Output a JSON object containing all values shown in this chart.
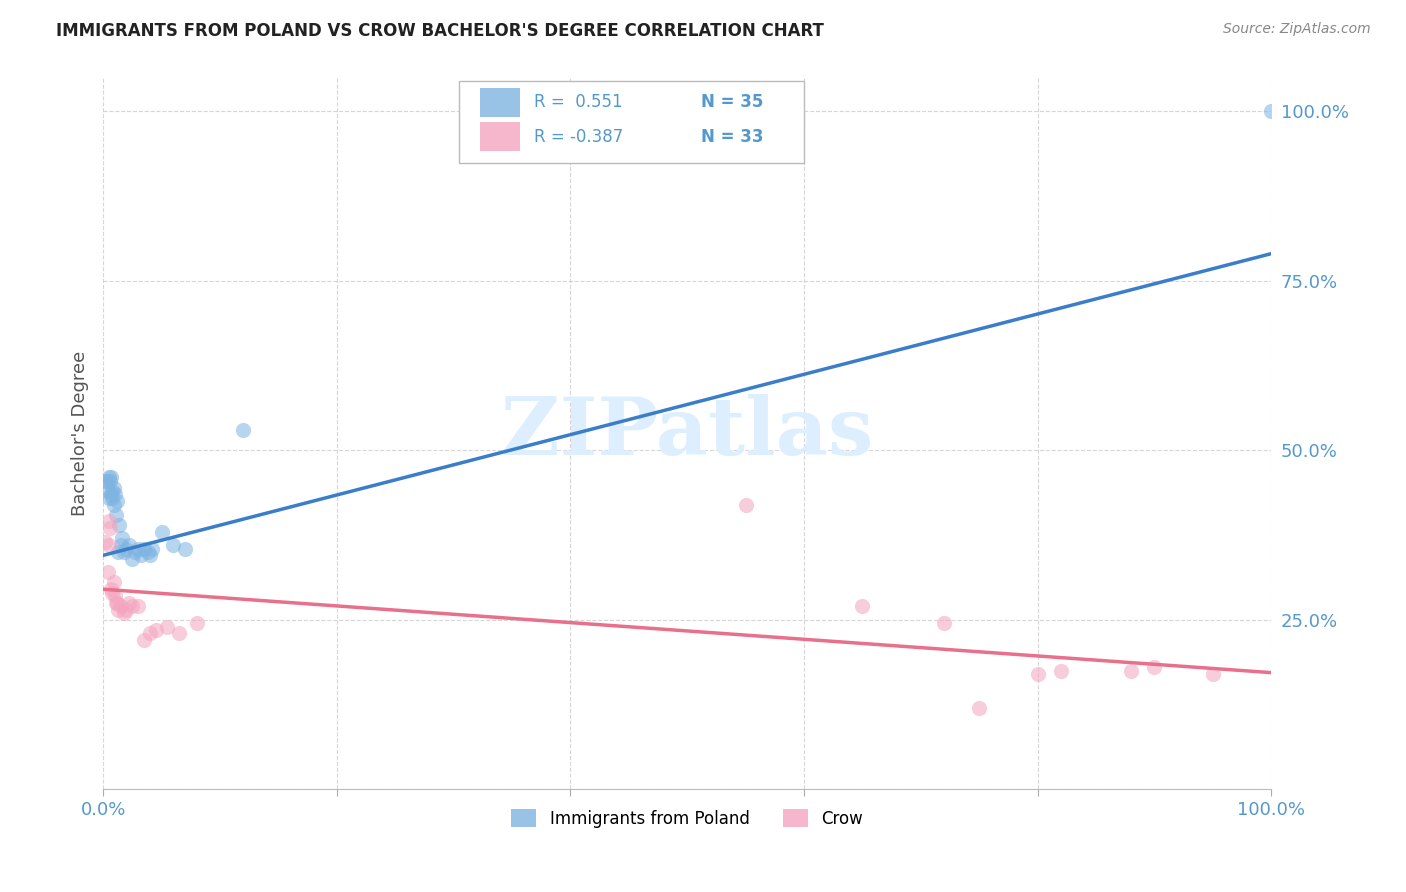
{
  "title": "IMMIGRANTS FROM POLAND VS CROW BACHELOR'S DEGREE CORRELATION CHART",
  "source": "Source: ZipAtlas.com",
  "ylabel": "Bachelor's Degree",
  "watermark": "ZIPatlas",
  "legend_blue_r": "R =  0.551",
  "legend_blue_n": "N = 35",
  "legend_pink_r": "R = -0.387",
  "legend_pink_n": "N = 33",
  "legend_blue_label": "Immigrants from Poland",
  "legend_pink_label": "Crow",
  "blue_scatter_x": [
    0.002,
    0.004,
    0.004,
    0.005,
    0.005,
    0.006,
    0.007,
    0.007,
    0.008,
    0.008,
    0.009,
    0.009,
    0.01,
    0.011,
    0.012,
    0.013,
    0.014,
    0.015,
    0.016,
    0.018,
    0.02,
    0.022,
    0.025,
    0.027,
    0.03,
    0.032,
    0.035,
    0.038,
    0.04,
    0.042,
    0.05,
    0.06,
    0.07,
    0.12,
    1.0
  ],
  "blue_scatter_y": [
    0.455,
    0.455,
    0.44,
    0.46,
    0.43,
    0.455,
    0.46,
    0.435,
    0.44,
    0.43,
    0.445,
    0.42,
    0.435,
    0.405,
    0.425,
    0.35,
    0.39,
    0.36,
    0.37,
    0.35,
    0.355,
    0.36,
    0.34,
    0.35,
    0.355,
    0.345,
    0.355,
    0.35,
    0.345,
    0.355,
    0.38,
    0.36,
    0.355,
    0.53,
    1.0
  ],
  "pink_scatter_x": [
    0.002,
    0.004,
    0.005,
    0.005,
    0.006,
    0.007,
    0.008,
    0.009,
    0.01,
    0.011,
    0.012,
    0.013,
    0.015,
    0.018,
    0.02,
    0.022,
    0.025,
    0.03,
    0.035,
    0.04,
    0.045,
    0.055,
    0.065,
    0.08,
    0.55,
    0.65,
    0.72,
    0.75,
    0.8,
    0.82,
    0.88,
    0.9,
    0.95
  ],
  "pink_scatter_y": [
    0.365,
    0.32,
    0.36,
    0.395,
    0.385,
    0.295,
    0.29,
    0.305,
    0.285,
    0.275,
    0.275,
    0.265,
    0.27,
    0.26,
    0.265,
    0.275,
    0.27,
    0.27,
    0.22,
    0.23,
    0.235,
    0.24,
    0.23,
    0.245,
    0.42,
    0.27,
    0.245,
    0.12,
    0.17,
    0.175,
    0.175,
    0.18,
    0.17
  ],
  "blue_line_x": [
    0.0,
    1.0
  ],
  "blue_line_y": [
    0.345,
    0.79
  ],
  "pink_line_x": [
    0.0,
    1.0
  ],
  "pink_line_y": [
    0.295,
    0.172
  ],
  "xlim": [
    0.0,
    1.0
  ],
  "ylim": [
    0.0,
    1.05
  ],
  "yticks": [
    0.0,
    0.25,
    0.5,
    0.75,
    1.0
  ],
  "ytick_labels": [
    "",
    "25.0%",
    "50.0%",
    "75.0%",
    "100.0%"
  ],
  "xticks": [
    0.0,
    0.2,
    0.4,
    0.6,
    0.8,
    1.0
  ],
  "xtick_labels": [
    "0.0%",
    "",
    "",
    "",
    "",
    "100.0%"
  ],
  "blue_color": "#7EB4E2",
  "pink_color": "#F4A4BE",
  "blue_line_color": "#3A7DC9",
  "pink_line_color": "#E8708A",
  "background_color": "#FFFFFF",
  "grid_color": "#CCCCCC",
  "title_color": "#222222",
  "source_color": "#888888",
  "watermark_color": "#DDEEFF",
  "tick_label_color": "#5599CC",
  "scatter_size": 120,
  "scatter_alpha": 0.55,
  "line_width": 2.5
}
